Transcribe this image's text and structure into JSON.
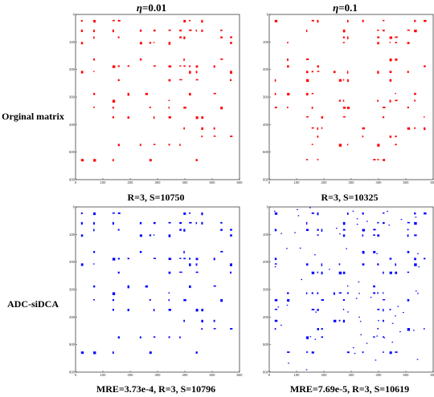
{
  "columns": [
    {
      "prefix": "η",
      "suffix": "=0.01"
    },
    {
      "prefix": "η",
      "suffix": "=0.1"
    }
  ],
  "rows": [
    {
      "label": "Orginal matrix"
    },
    {
      "label": "ADC-siDCA"
    }
  ],
  "captions": [
    "R=3, S=10750",
    "R=3, S=10325",
    "MRE=3.73e-4, R=3, S=10796",
    "MRE=7.69e-5, R=3, S=10619"
  ],
  "colors": {
    "original": "#ff0000",
    "reconstructed": "#0000ff"
  },
  "chart_data": [
    {
      "type": "heatmap",
      "name_row": "Orginal matrix",
      "eta": "0.01",
      "color": "#ff0000",
      "xlim": [
        0,
        600
      ],
      "ylim": [
        0,
        600
      ],
      "xticks": [
        0,
        100,
        200,
        300,
        400,
        500,
        600
      ],
      "yticks": [
        0,
        100,
        200,
        300,
        400,
        500,
        600
      ],
      "block_rows": [
        20,
        55,
        80,
        100,
        160,
        185,
        205,
        235,
        285,
        310,
        335,
        370,
        410,
        440,
        470,
        525
      ],
      "block_cols": [
        20,
        65,
        135,
        155,
        175,
        190,
        235,
        255,
        270,
        285,
        340,
        380,
        395,
        415,
        440,
        460,
        505,
        530,
        565
      ],
      "density": 0.3,
      "seed": 11,
      "noise": 0
    },
    {
      "type": "heatmap",
      "name_row": "Orginal matrix",
      "eta": "0.1",
      "color": "#ff0000",
      "xlim": [
        0,
        600
      ],
      "ylim": [
        0,
        600
      ],
      "xticks": [
        0,
        100,
        200,
        300,
        400,
        500,
        600
      ],
      "yticks": [
        0,
        100,
        200,
        300,
        400,
        500,
        600
      ],
      "block_rows": [
        20,
        55,
        80,
        100,
        160,
        185,
        205,
        235,
        285,
        310,
        335,
        370,
        410,
        440,
        470,
        525
      ],
      "block_cols": [
        20,
        65,
        135,
        155,
        175,
        190,
        235,
        255,
        270,
        285,
        340,
        380,
        395,
        415,
        440,
        460,
        505,
        530,
        565
      ],
      "density": 0.34,
      "seed": 29,
      "noise": 0
    },
    {
      "type": "heatmap",
      "name_row": "ADC-siDCA",
      "eta": "0.01",
      "color": "#0000ff",
      "xlim": [
        0,
        600
      ],
      "ylim": [
        0,
        600
      ],
      "xticks": [
        0,
        100,
        200,
        300,
        400,
        500,
        600
      ],
      "yticks": [
        0,
        100,
        200,
        300,
        400,
        500,
        600
      ],
      "block_rows": [
        20,
        55,
        80,
        100,
        160,
        185,
        205,
        235,
        285,
        310,
        335,
        370,
        410,
        440,
        470,
        525
      ],
      "block_cols": [
        20,
        65,
        135,
        155,
        175,
        190,
        235,
        255,
        270,
        285,
        340,
        380,
        395,
        415,
        440,
        460,
        505,
        530,
        565
      ],
      "density": 0.3,
      "seed": 11,
      "noise": 0
    },
    {
      "type": "heatmap",
      "name_row": "ADC-siDCA",
      "eta": "0.1",
      "color": "#0000ff",
      "xlim": [
        0,
        600
      ],
      "ylim": [
        0,
        600
      ],
      "xticks": [
        0,
        100,
        200,
        300,
        400,
        500,
        600
      ],
      "yticks": [
        0,
        100,
        200,
        300,
        400,
        500,
        600
      ],
      "block_rows": [
        20,
        55,
        80,
        100,
        160,
        185,
        205,
        235,
        285,
        310,
        335,
        370,
        410,
        440,
        470,
        525
      ],
      "block_cols": [
        20,
        65,
        135,
        155,
        175,
        190,
        235,
        255,
        270,
        285,
        340,
        380,
        395,
        415,
        440,
        460,
        505,
        530,
        565
      ],
      "density": 0.36,
      "seed": 29,
      "noise": 60
    }
  ]
}
